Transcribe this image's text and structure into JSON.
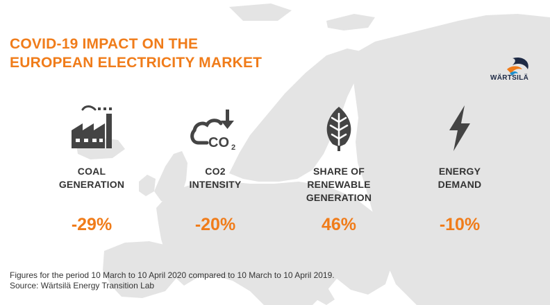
{
  "title": {
    "line1": "COVID-19 IMPACT ON THE",
    "line2": "EUROPEAN ELECTRICITY MARKET"
  },
  "logo": {
    "text": "WÄRTSILÄ",
    "icon": "wartsila-logo-swirl"
  },
  "colors": {
    "accent": "#f07c1a",
    "icon": "#444444",
    "map": "#e4e4e4"
  },
  "metrics": [
    {
      "icon": "factory-icon",
      "label_lines": [
        "COAL",
        "GENERATION"
      ],
      "value": "-29%"
    },
    {
      "icon": "co2-cloud-icon",
      "label_lines": [
        "CO2",
        "INTENSITY"
      ],
      "value": "-20%"
    },
    {
      "icon": "leaf-icon",
      "label_lines": [
        "SHARE OF",
        "RENEWABLE",
        "GENERATION"
      ],
      "value": "46%"
    },
    {
      "icon": "lightning-icon",
      "label_lines": [
        "ENERGY",
        "DEMAND"
      ],
      "value": "-10%"
    }
  ],
  "co2_icon_text": "CO",
  "co2_icon_sub": "2",
  "footnote": {
    "line1": "Figures for the period 10 March to 10 April 2020 compared to 10 March to 10 April 2019.",
    "line2": "Source: Wärtsilä Energy Transition Lab"
  }
}
